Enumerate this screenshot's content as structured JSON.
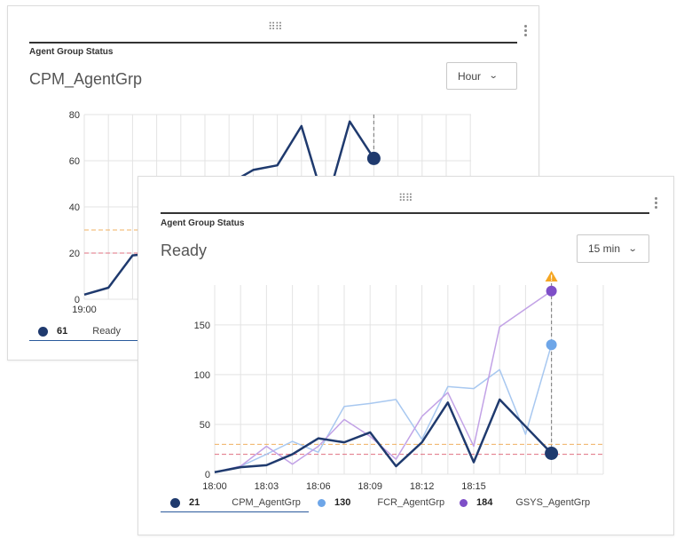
{
  "colors": {
    "cpm": "#1f3a6e",
    "fcr": "#6ea6e8",
    "gsys": "#7e4fc8",
    "fcr_line": "#a8c8f0",
    "gsys_line": "#c2a2e6",
    "threshold_orange": "#f0b060",
    "threshold_red": "#e07080",
    "alert": "#f5a623"
  },
  "back_card": {
    "header": "Agent Group Status",
    "title": "CPM_AgentGrp",
    "range_select": "Hour",
    "legend": {
      "value": "61",
      "label": "Ready"
    }
  },
  "front_card": {
    "header": "Agent Group Status",
    "title": "Ready",
    "range_select": "15 min",
    "legend": [
      {
        "value": "21",
        "label": "CPM_AgentGrp",
        "color": "#1f3a6e"
      },
      {
        "value": "130",
        "label": "FCR_AgentGrp",
        "color": "#6ea6e8"
      },
      {
        "value": "184",
        "label": "GSYS_AgentGrp",
        "color": "#7e4fc8"
      }
    ]
  },
  "chart_data": [
    {
      "type": "line",
      "x_labels": [
        "19:00"
      ],
      "yticks": [
        "0",
        "20",
        "40",
        "60",
        "80"
      ],
      "ylim": [
        0,
        80
      ],
      "thresholds": [
        30,
        20
      ],
      "series": [
        {
          "name": "CPM_AgentGrp",
          "x": [
            0,
            1,
            2,
            3,
            4,
            5,
            6,
            7,
            8,
            9,
            10,
            11,
            12
          ],
          "values": [
            2,
            5,
            19,
            20,
            30,
            42,
            50,
            56,
            58,
            75,
            40,
            77,
            61
          ]
        }
      ]
    },
    {
      "type": "line",
      "x_labels": [
        "18:00",
        "18:03",
        "18:06",
        "18:09",
        "18:12",
        "18:15"
      ],
      "yticks": [
        "0",
        "50",
        "100",
        "150"
      ],
      "ylim": [
        0,
        190
      ],
      "thresholds": [
        30,
        20
      ],
      "series": [
        {
          "name": "CPM_AgentGrp",
          "values": [
            2,
            7,
            9,
            20,
            36,
            32,
            42,
            8,
            32,
            72,
            12,
            75,
            48,
            21
          ]
        },
        {
          "name": "FCR_AgentGrp",
          "values": [
            2,
            8,
            20,
            33,
            22,
            68,
            71,
            75,
            35,
            88,
            86,
            105,
            40,
            130
          ]
        },
        {
          "name": "GSYS_AgentGrp",
          "values": [
            2,
            8,
            28,
            10,
            28,
            55,
            38,
            15,
            58,
            82,
            28,
            148,
            166,
            184
          ]
        }
      ]
    }
  ]
}
